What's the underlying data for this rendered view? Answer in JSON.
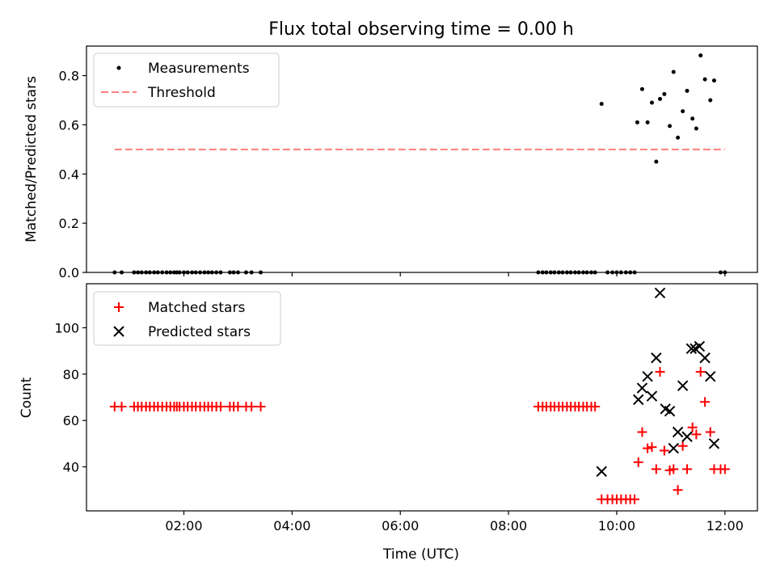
{
  "chart_data": [
    {
      "type": "scatter",
      "title": "Flux total observing time = 0.00 h",
      "xlabel": "",
      "ylabel": "Matched/Predicted stars",
      "x_unit": "hours (UTC)",
      "xlim": [
        0.2,
        12.6
      ],
      "ylim": [
        0.0,
        0.92
      ],
      "yticks": [
        "0.0",
        "0.2",
        "0.4",
        "0.6",
        "0.8"
      ],
      "grid": false,
      "legend_position": "top-left",
      "threshold": {
        "name": "Threshold",
        "value": 0.5,
        "x_range": [
          0.72,
          12.0
        ],
        "color": "#ff7f7f"
      },
      "series": [
        {
          "name": "Measurements",
          "color": "#000000",
          "marker": "dot",
          "points": [
            [
              0.72,
              0.0
            ],
            [
              0.85,
              0.0
            ],
            [
              1.08,
              0.0
            ],
            [
              1.15,
              0.0
            ],
            [
              1.22,
              0.0
            ],
            [
              1.3,
              0.0
            ],
            [
              1.37,
              0.0
            ],
            [
              1.45,
              0.0
            ],
            [
              1.52,
              0.0
            ],
            [
              1.6,
              0.0
            ],
            [
              1.68,
              0.0
            ],
            [
              1.75,
              0.0
            ],
            [
              1.82,
              0.0
            ],
            [
              1.87,
              0.0
            ],
            [
              1.92,
              0.0
            ],
            [
              2.0,
              0.0
            ],
            [
              2.07,
              0.0
            ],
            [
              2.15,
              0.0
            ],
            [
              2.22,
              0.0
            ],
            [
              2.3,
              0.0
            ],
            [
              2.38,
              0.0
            ],
            [
              2.45,
              0.0
            ],
            [
              2.52,
              0.0
            ],
            [
              2.6,
              0.0
            ],
            [
              2.68,
              0.0
            ],
            [
              2.85,
              0.0
            ],
            [
              2.92,
              0.0
            ],
            [
              3.0,
              0.0
            ],
            [
              3.15,
              0.0
            ],
            [
              3.25,
              0.0
            ],
            [
              3.42,
              0.0
            ],
            [
              8.55,
              0.0
            ],
            [
              8.63,
              0.0
            ],
            [
              8.7,
              0.0
            ],
            [
              8.78,
              0.0
            ],
            [
              8.85,
              0.0
            ],
            [
              8.93,
              0.0
            ],
            [
              9.0,
              0.0
            ],
            [
              9.08,
              0.0
            ],
            [
              9.15,
              0.0
            ],
            [
              9.23,
              0.0
            ],
            [
              9.3,
              0.0
            ],
            [
              9.38,
              0.0
            ],
            [
              9.45,
              0.0
            ],
            [
              9.53,
              0.0
            ],
            [
              9.6,
              0.0
            ],
            [
              9.83,
              0.0
            ],
            [
              9.92,
              0.0
            ],
            [
              10.0,
              0.0
            ],
            [
              10.08,
              0.0
            ],
            [
              10.17,
              0.0
            ],
            [
              10.25,
              0.0
            ],
            [
              10.33,
              0.0
            ],
            [
              11.92,
              0.0
            ],
            [
              12.0,
              0.0
            ],
            [
              9.72,
              0.685
            ],
            [
              10.38,
              0.61
            ],
            [
              10.47,
              0.745
            ],
            [
              10.57,
              0.61
            ],
            [
              10.65,
              0.69
            ],
            [
              10.73,
              0.45
            ],
            [
              10.8,
              0.705
            ],
            [
              10.88,
              0.725
            ],
            [
              10.98,
              0.595
            ],
            [
              11.05,
              0.815
            ],
            [
              11.13,
              0.548
            ],
            [
              11.22,
              0.655
            ],
            [
              11.3,
              0.738
            ],
            [
              11.4,
              0.625
            ],
            [
              11.47,
              0.585
            ],
            [
              11.55,
              0.882
            ],
            [
              11.63,
              0.785
            ],
            [
              11.73,
              0.7
            ],
            [
              11.8,
              0.78
            ]
          ]
        }
      ]
    },
    {
      "type": "scatter",
      "title": "",
      "xlabel": "Time (UTC)",
      "ylabel": "Count",
      "x_unit": "hours (UTC)",
      "xlim": [
        0.2,
        12.6
      ],
      "ylim": [
        21,
        119
      ],
      "xticks": [
        "02:00",
        "04:00",
        "06:00",
        "08:00",
        "10:00",
        "12:00"
      ],
      "yticks": [
        "40",
        "60",
        "80",
        "100"
      ],
      "grid": false,
      "legend_position": "top-left",
      "series": [
        {
          "name": "Matched stars",
          "color": "#ff0000",
          "marker": "plus",
          "points": [
            [
              0.72,
              66
            ],
            [
              0.85,
              66
            ],
            [
              1.08,
              66
            ],
            [
              1.15,
              66
            ],
            [
              1.22,
              66
            ],
            [
              1.3,
              66
            ],
            [
              1.37,
              66
            ],
            [
              1.45,
              66
            ],
            [
              1.52,
              66
            ],
            [
              1.6,
              66
            ],
            [
              1.68,
              66
            ],
            [
              1.75,
              66
            ],
            [
              1.82,
              66
            ],
            [
              1.87,
              66
            ],
            [
              1.92,
              66
            ],
            [
              2.0,
              66
            ],
            [
              2.07,
              66
            ],
            [
              2.15,
              66
            ],
            [
              2.22,
              66
            ],
            [
              2.3,
              66
            ],
            [
              2.38,
              66
            ],
            [
              2.45,
              66
            ],
            [
              2.52,
              66
            ],
            [
              2.6,
              66
            ],
            [
              2.68,
              66
            ],
            [
              2.85,
              66
            ],
            [
              2.92,
              66
            ],
            [
              3.0,
              66
            ],
            [
              3.15,
              66
            ],
            [
              3.25,
              66
            ],
            [
              3.42,
              66
            ],
            [
              8.55,
              66
            ],
            [
              8.63,
              66
            ],
            [
              8.7,
              66
            ],
            [
              8.78,
              66
            ],
            [
              8.85,
              66
            ],
            [
              8.93,
              66
            ],
            [
              9.0,
              66
            ],
            [
              9.08,
              66
            ],
            [
              9.15,
              66
            ],
            [
              9.23,
              66
            ],
            [
              9.3,
              66
            ],
            [
              9.38,
              66
            ],
            [
              9.45,
              66
            ],
            [
              9.53,
              66
            ],
            [
              9.6,
              66
            ],
            [
              9.72,
              26
            ],
            [
              9.83,
              26
            ],
            [
              9.92,
              26
            ],
            [
              10.0,
              26
            ],
            [
              10.08,
              26
            ],
            [
              10.17,
              26
            ],
            [
              10.25,
              26
            ],
            [
              10.33,
              26
            ],
            [
              10.4,
              42
            ],
            [
              10.47,
              55
            ],
            [
              10.57,
              48
            ],
            [
              10.65,
              48.5
            ],
            [
              10.73,
              39
            ],
            [
              10.8,
              81
            ],
            [
              10.88,
              47
            ],
            [
              10.98,
              38.5
            ],
            [
              11.05,
              39
            ],
            [
              11.13,
              30
            ],
            [
              11.22,
              49
            ],
            [
              11.3,
              39
            ],
            [
              11.4,
              57
            ],
            [
              11.47,
              54
            ],
            [
              11.55,
              81
            ],
            [
              11.63,
              68
            ],
            [
              11.73,
              55
            ],
            [
              11.8,
              39
            ],
            [
              11.92,
              39
            ],
            [
              12.0,
              39
            ]
          ]
        },
        {
          "name": "Predicted stars",
          "color": "#000000",
          "marker": "x",
          "points": [
            [
              9.72,
              38
            ],
            [
              10.4,
              69
            ],
            [
              10.47,
              74
            ],
            [
              10.57,
              79
            ],
            [
              10.65,
              70.5
            ],
            [
              10.73,
              87
            ],
            [
              10.8,
              115
            ],
            [
              10.9,
              65
            ],
            [
              10.98,
              64
            ],
            [
              11.05,
              48
            ],
            [
              11.13,
              55
            ],
            [
              11.22,
              75
            ],
            [
              11.3,
              53
            ],
            [
              11.38,
              91
            ],
            [
              11.45,
              91
            ],
            [
              11.53,
              92
            ],
            [
              11.63,
              87
            ],
            [
              11.73,
              79
            ],
            [
              11.8,
              50
            ]
          ]
        }
      ]
    }
  ]
}
